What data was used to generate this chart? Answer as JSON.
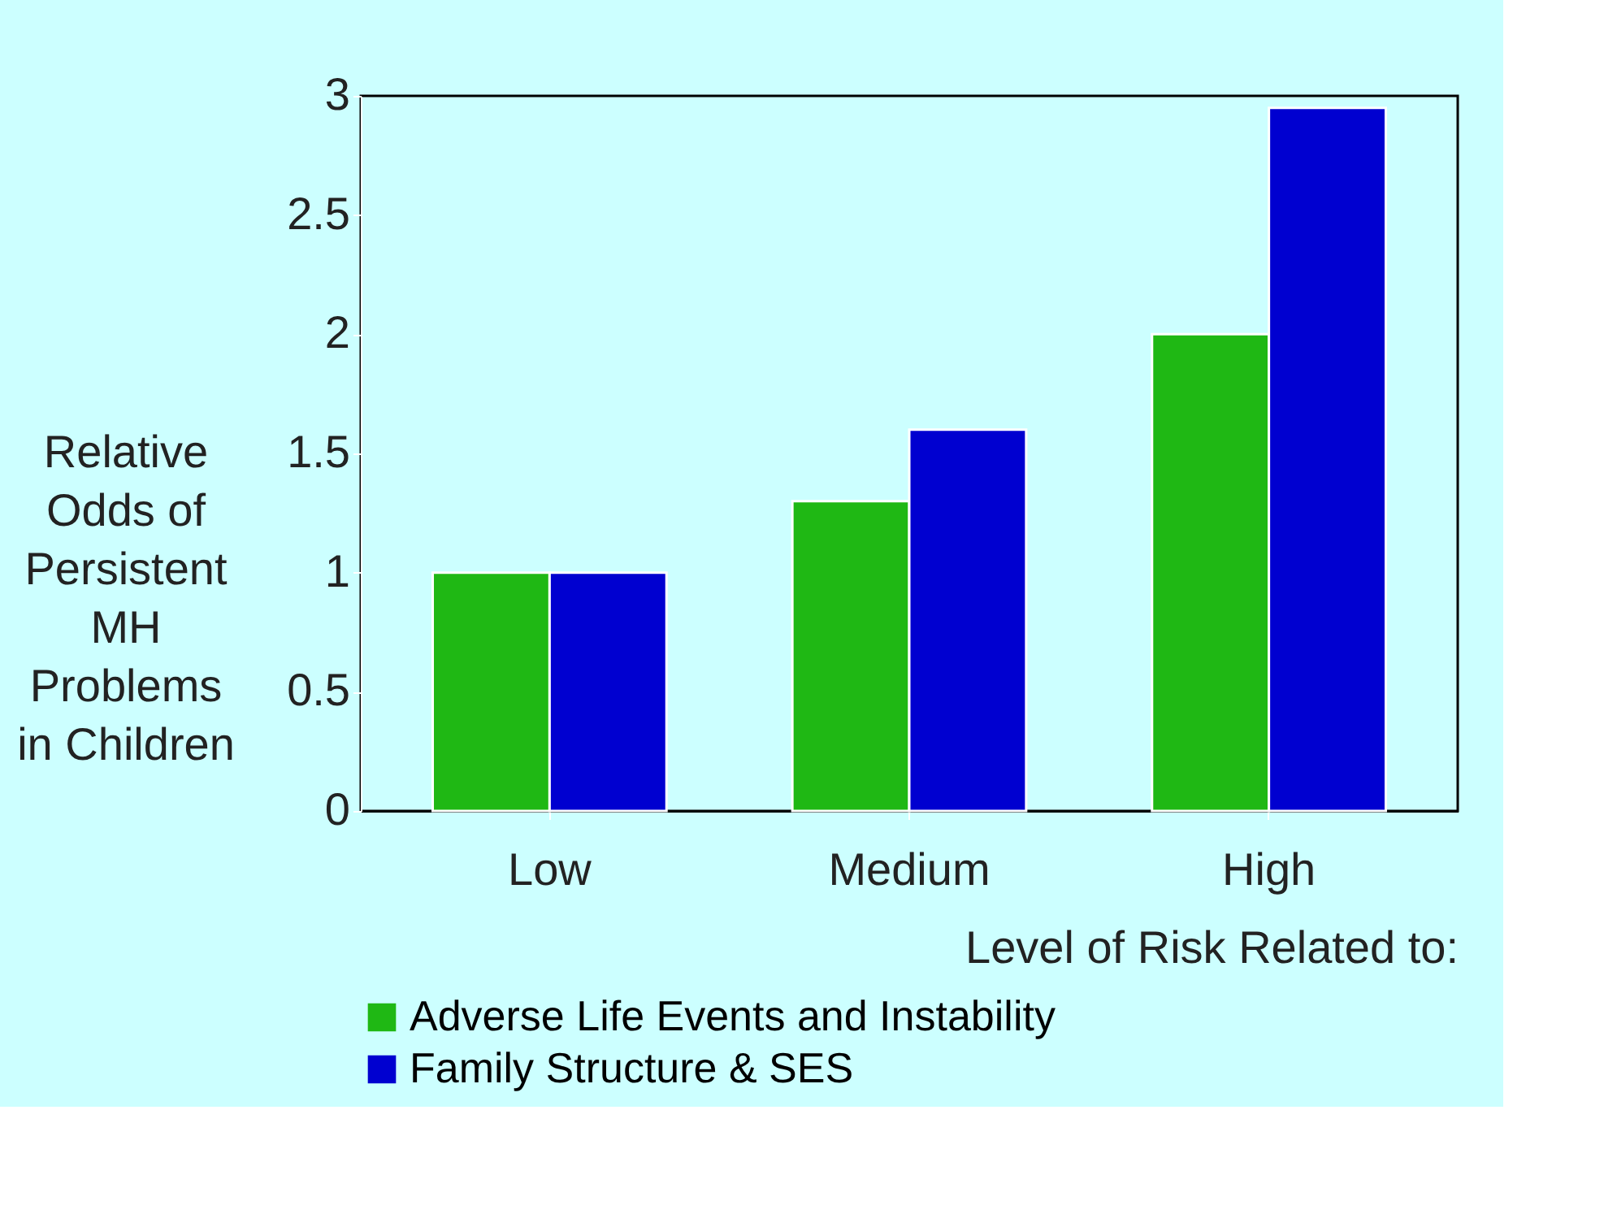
{
  "chart_data": {
    "type": "bar",
    "ylabel": "Relative\nOdds of\nPersistent\nMH\nProblems\nin Children",
    "xlabel": "Level of Risk Related to:",
    "categories": [
      "Low",
      "Medium",
      "High"
    ],
    "series": [
      {
        "name": "Adverse Life Events and Instability",
        "color": "#1fb814",
        "values": [
          1,
          1.3,
          2.0
        ]
      },
      {
        "name": "Family Structure & SES",
        "color": "#0000d0",
        "values": [
          1,
          1.6,
          2.95
        ]
      }
    ],
    "ylim": [
      0,
      3
    ],
    "yticks": [
      0,
      0.5,
      1,
      1.5,
      2,
      2.5,
      3
    ],
    "grid": false,
    "legend": "bottom left"
  }
}
